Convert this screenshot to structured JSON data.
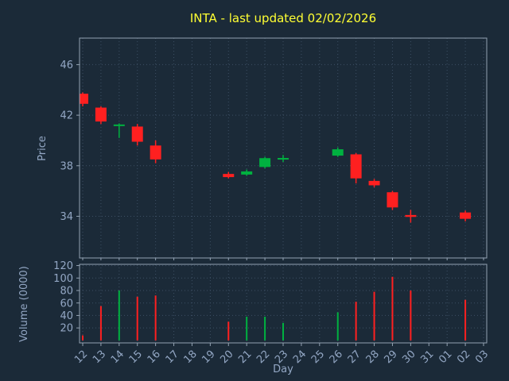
{
  "chart_data": {
    "type": "candlestick",
    "title": "INTA - last updated 02/02/2026",
    "xlabel": "Day",
    "ylabel_price": "Price",
    "ylabel_volume": "Volume (0000)",
    "grid": true,
    "x_categories": [
      "12",
      "13",
      "14",
      "15",
      "16",
      "17",
      "18",
      "19",
      "20",
      "21",
      "22",
      "23",
      "24",
      "25",
      "26",
      "27",
      "28",
      "29",
      "30",
      "31",
      "01",
      "02",
      "03"
    ],
    "price_ticks": [
      34,
      38,
      42,
      46
    ],
    "price_ylim": [
      30.7,
      48.1
    ],
    "volume_ticks": [
      20,
      40,
      60,
      80,
      100,
      120
    ],
    "volume_ylim": [
      -4,
      122
    ],
    "colors": {
      "background": "#1b2a38",
      "up": "#00b140",
      "down": "#ff2020",
      "grid": "#3c4f63",
      "text": "#93a7c4",
      "title": "#ffff33",
      "spine": "#93a2b2"
    },
    "candles": [
      {
        "day": "12",
        "open": 43.7,
        "high": 43.8,
        "low": 42.7,
        "close": 42.9,
        "trend": "down"
      },
      {
        "day": "13",
        "open": 42.6,
        "high": 42.7,
        "low": 41.3,
        "close": 41.5,
        "trend": "down"
      },
      {
        "day": "14",
        "open": 41.15,
        "high": 41.35,
        "low": 40.2,
        "close": 41.25,
        "trend": "up"
      },
      {
        "day": "15",
        "open": 41.1,
        "high": 41.3,
        "low": 39.6,
        "close": 39.9,
        "trend": "down"
      },
      {
        "day": "16",
        "open": 39.6,
        "high": 40.0,
        "low": 38.2,
        "close": 38.5,
        "trend": "down"
      },
      {
        "day": "20",
        "open": 37.35,
        "high": 37.5,
        "low": 37.0,
        "close": 37.1,
        "trend": "down"
      },
      {
        "day": "21",
        "open": 37.3,
        "high": 37.7,
        "low": 37.2,
        "close": 37.55,
        "trend": "up"
      },
      {
        "day": "22",
        "open": 37.9,
        "high": 38.7,
        "low": 37.8,
        "close": 38.6,
        "trend": "up"
      },
      {
        "day": "23",
        "open": 38.5,
        "high": 38.85,
        "low": 38.3,
        "close": 38.6,
        "trend": "up"
      },
      {
        "day": "26",
        "open": 38.8,
        "high": 39.45,
        "low": 38.7,
        "close": 39.3,
        "trend": "up"
      },
      {
        "day": "27",
        "open": 38.9,
        "high": 39.0,
        "low": 36.6,
        "close": 37.0,
        "trend": "down"
      },
      {
        "day": "28",
        "open": 36.8,
        "high": 36.95,
        "low": 36.3,
        "close": 36.45,
        "trend": "down"
      },
      {
        "day": "29",
        "open": 35.9,
        "high": 36.0,
        "low": 34.5,
        "close": 34.7,
        "trend": "down"
      },
      {
        "day": "30",
        "open": 34.1,
        "high": 34.5,
        "low": 33.5,
        "close": 33.95,
        "trend": "down"
      },
      {
        "day": "02",
        "open": 34.3,
        "high": 34.45,
        "low": 33.6,
        "close": 33.8,
        "trend": "down"
      }
    ],
    "volumes": [
      {
        "day": "12",
        "value": 8,
        "trend": "down"
      },
      {
        "day": "13",
        "value": 55,
        "trend": "down"
      },
      {
        "day": "14",
        "value": 80,
        "trend": "up"
      },
      {
        "day": "15",
        "value": 70,
        "trend": "down"
      },
      {
        "day": "16",
        "value": 72,
        "trend": "down"
      },
      {
        "day": "20",
        "value": 30,
        "trend": "down"
      },
      {
        "day": "21",
        "value": 38,
        "trend": "up"
      },
      {
        "day": "22",
        "value": 38,
        "trend": "up"
      },
      {
        "day": "23",
        "value": 28,
        "trend": "up"
      },
      {
        "day": "26",
        "value": 45,
        "trend": "up"
      },
      {
        "day": "27",
        "value": 62,
        "trend": "down"
      },
      {
        "day": "28",
        "value": 78,
        "trend": "down"
      },
      {
        "day": "29",
        "value": 102,
        "trend": "down"
      },
      {
        "day": "30",
        "value": 80,
        "trend": "down"
      },
      {
        "day": "02",
        "value": 65,
        "trend": "down"
      }
    ]
  }
}
